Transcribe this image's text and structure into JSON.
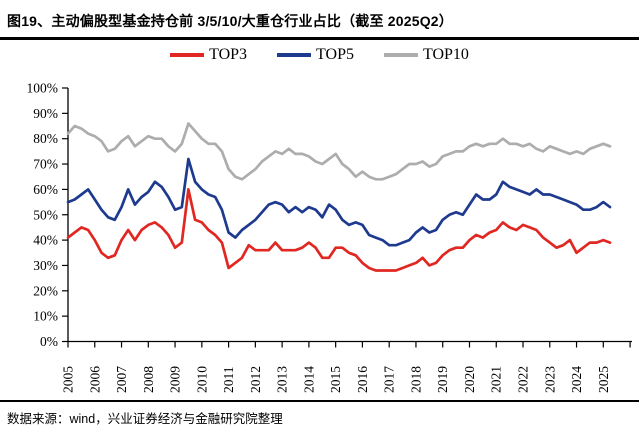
{
  "header": {
    "title": "图19、主动偏股型基金持仓前 3/5/10/大重仓行业占比（截至 2025Q2）"
  },
  "footer": {
    "source": "数据来源：wind，兴业证券经济与金融研究院整理"
  },
  "chart_data": {
    "type": "line",
    "title": "主动偏股型基金持仓前3/5/10/大重仓行业占比",
    "x_unit": "quarter",
    "x_start": "2005Q1",
    "x_end": "2025Q2",
    "x_tick_labels": [
      "2005",
      "2006",
      "2007",
      "2008",
      "2009",
      "2010",
      "2011",
      "2012",
      "2013",
      "2014",
      "2015",
      "2016",
      "2017",
      "2018",
      "2019",
      "2020",
      "2021",
      "2022",
      "2023",
      "2024",
      "2025"
    ],
    "ylim": [
      0,
      100
    ],
    "ytick_step": 10,
    "ytick_labels": [
      "0%",
      "10%",
      "20%",
      "30%",
      "40%",
      "50%",
      "60%",
      "70%",
      "80%",
      "90%",
      "100%"
    ],
    "grid": false,
    "legend_position": "top",
    "series": [
      {
        "name": "TOP3",
        "color": "#E02722",
        "values": [
          41,
          43,
          45,
          44,
          40,
          35,
          33,
          34,
          40,
          44,
          40,
          44,
          46,
          47,
          45,
          42,
          37,
          39,
          60,
          48,
          47,
          44,
          42,
          39,
          29,
          31,
          33,
          38,
          36,
          36,
          36,
          39,
          36,
          36,
          36,
          37,
          39,
          37,
          33,
          33,
          37,
          37,
          35,
          34,
          31,
          29,
          28,
          28,
          28,
          28,
          29,
          30,
          31,
          33,
          30,
          31,
          34,
          36,
          37,
          37,
          40,
          42,
          41,
          43,
          44,
          47,
          45,
          44,
          46,
          45,
          44,
          41,
          39,
          37,
          38,
          40,
          35,
          37,
          39,
          39,
          40,
          39
        ]
      },
      {
        "name": "TOP5",
        "color": "#1E3A8E",
        "values": [
          55,
          56,
          58,
          60,
          56,
          52,
          49,
          48,
          53,
          60,
          54,
          57,
          59,
          63,
          61,
          57,
          52,
          53,
          72,
          63,
          60,
          58,
          57,
          52,
          43,
          41,
          44,
          46,
          48,
          51,
          54,
          55,
          54,
          51,
          53,
          51,
          53,
          52,
          49,
          54,
          52,
          48,
          46,
          47,
          46,
          42,
          41,
          40,
          38,
          38,
          39,
          40,
          43,
          45,
          43,
          44,
          48,
          50,
          51,
          50,
          54,
          58,
          56,
          56,
          58,
          63,
          61,
          60,
          59,
          58,
          60,
          58,
          58,
          57,
          56,
          55,
          54,
          52,
          52,
          53,
          55,
          53
        ]
      },
      {
        "name": "TOP10",
        "color": "#ADADAD",
        "values": [
          82,
          85,
          84,
          82,
          81,
          79,
          75,
          76,
          79,
          81,
          77,
          79,
          81,
          80,
          80,
          77,
          75,
          78,
          86,
          83,
          80,
          78,
          78,
          75,
          68,
          65,
          64,
          66,
          68,
          71,
          73,
          75,
          74,
          76,
          74,
          74,
          73,
          71,
          70,
          72,
          74,
          70,
          68,
          65,
          67,
          65,
          64,
          64,
          65,
          66,
          68,
          70,
          70,
          71,
          69,
          70,
          73,
          74,
          75,
          75,
          77,
          78,
          77,
          78,
          78,
          80,
          78,
          78,
          77,
          78,
          76,
          75,
          77,
          76,
          75,
          74,
          75,
          74,
          76,
          77,
          78,
          77
        ]
      }
    ]
  }
}
